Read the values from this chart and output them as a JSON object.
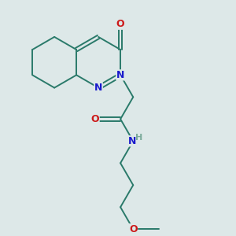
{
  "bg_color": "#dde8e8",
  "bond_color": "#2a7a6a",
  "bond_width": 1.4,
  "atom_colors": {
    "N": "#1a1acc",
    "O": "#cc1a1a",
    "H": "#7aaa9a",
    "C": "#2a7a6a"
  },
  "xlim": [
    0,
    10
  ],
  "ylim": [
    0,
    10
  ]
}
